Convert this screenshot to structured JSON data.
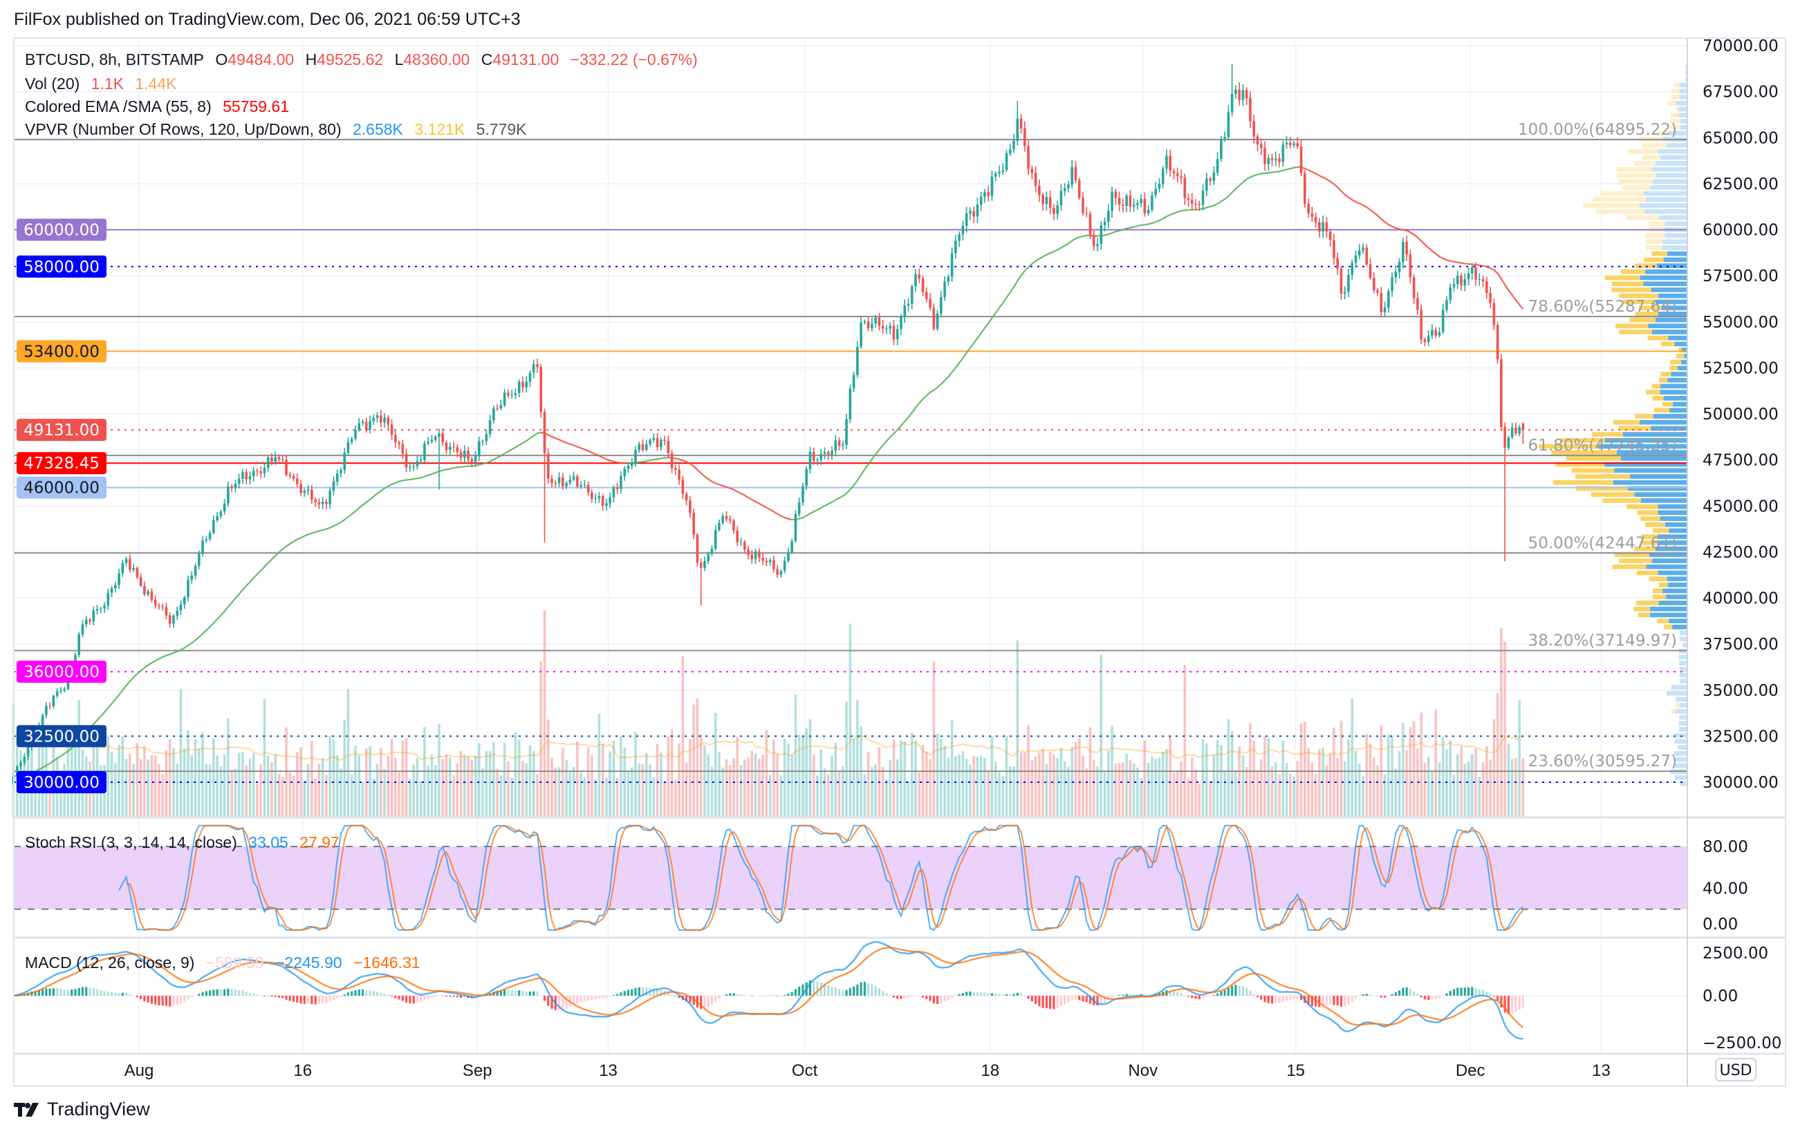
{
  "header": {
    "published": "FilFox published on TradingView.com, Dec 06, 2021 06:59 UTC+3"
  },
  "legend": {
    "symbol": "BTCUSD, 8h, BITSTAMP",
    "o_label": "O",
    "o": "49484.00",
    "h_label": "H",
    "h": "49525.62",
    "l_label": "L",
    "l": "48360.00",
    "c_label": "C",
    "c": "49131.00",
    "change": "−332.22 (−0.67%)",
    "vol_name": "Vol (20)",
    "vol": "1.1K",
    "vol_ma": "1.44K",
    "ema_name": "Colored EMA /SMA (55, 8)",
    "ema": "55759.61",
    "vpvr_name": "VPVR (Number Of Rows, 120, Up/Down, 80)",
    "vpvr_up": "2.658K",
    "vpvr_down": "3.121K",
    "vpvr_total": "5.779K"
  },
  "stoch": {
    "name": "Stoch RSI (3, 3, 14, 14, close)",
    "k": "33.05",
    "d": "27.97",
    "ticks": [
      "80.00",
      "40.00",
      "0.00"
    ]
  },
  "macd": {
    "name": "MACD (12, 26, close, 9)",
    "hist": "−599.59",
    "macd": "−2245.90",
    "signal": "−1646.31",
    "ticks": [
      "2500.00",
      "0.00",
      "−2500.00"
    ]
  },
  "price_axis": {
    "currency": "USD",
    "ticks": [
      "70000.00",
      "67500.00",
      "65000.00",
      "62500.00",
      "60000.00",
      "57500.00",
      "55000.00",
      "52500.00",
      "50000.00",
      "47500.00",
      "45000.00",
      "42500.00",
      "40000.00",
      "37500.00",
      "35000.00",
      "32500.00",
      "30000.00"
    ]
  },
  "levels": [
    {
      "price": 60000,
      "label": "60000.00",
      "color": "#9575cd",
      "text_color": "#ffffff",
      "style": "solid"
    },
    {
      "price": 58000,
      "label": "58000.00",
      "color": "#0000ff",
      "text_color": "#ffffff",
      "style": "dotted"
    },
    {
      "price": 53400,
      "label": "53400.00",
      "color": "#ffa726",
      "text_color": "#131722",
      "style": "solid"
    },
    {
      "price": 49131,
      "label": "49131.00",
      "color": "#ef5350",
      "text_color": "#ffffff",
      "style": "dotted"
    },
    {
      "price": 47328.45,
      "label": "47328.45",
      "color": "#ff0000",
      "text_color": "#ffffff",
      "style": "solid"
    },
    {
      "price": 46000,
      "label": "46000.00",
      "color": "#a4c2f4",
      "text_color": "#131722",
      "style": "solid"
    },
    {
      "price": 36000,
      "label": "36000.00",
      "color": "#ff00ff",
      "text_color": "#ffffff",
      "style": "dotted"
    },
    {
      "price": 32500,
      "label": "32500.00",
      "color": "#0d47a1",
      "text_color": "#ffffff",
      "style": "dotted"
    },
    {
      "price": 30000,
      "label": "30000.00",
      "color": "#0000ff",
      "text_color": "#ffffff",
      "style": "dotted"
    }
  ],
  "fib": [
    {
      "label": "100.00%(64895.22)",
      "price": 64895.22
    },
    {
      "label": "78.60%(55287.64)",
      "price": 55287.64
    },
    {
      "label": "61.80%(47745.25)",
      "price": 47745.25
    },
    {
      "label": "50.00%(42447.61)",
      "price": 42447.61
    },
    {
      "label": "38.20%(37149.97)",
      "price": 37149.97
    },
    {
      "label": "23.60%(30595.27)",
      "price": 30595.27
    }
  ],
  "time_axis": [
    {
      "label": "Aug",
      "day": 0
    },
    {
      "label": "16",
      "day": 15
    },
    {
      "label": "Sep",
      "day": 31
    },
    {
      "label": "13",
      "day": 43
    },
    {
      "label": "Oct",
      "day": 61
    },
    {
      "label": "18",
      "day": 78
    },
    {
      "label": "Nov",
      "day": 92
    },
    {
      "label": "15",
      "day": 106
    },
    {
      "label": "Dec",
      "day": 122
    },
    {
      "label": "13",
      "day": 134
    }
  ],
  "brand": "TradingView",
  "colors": {
    "up": "#26a69a",
    "down": "#ef5350",
    "ema_up": "#4caf50",
    "ema_down": "#f44336",
    "macd": "#2196f3",
    "signal": "#ff6d00",
    "stoch_k": "#2196f3",
    "stoch_d": "#ff6d00",
    "vp_up": "#5dade8",
    "vp_down": "#fbd365",
    "vp_up_light": "#c8e2f7",
    "vp_down_light": "#fdefc9",
    "stoch_band": "#ead2fb"
  },
  "chart_data": {
    "type": "candlestick",
    "title": "BTCUSD, 8h, BITSTAMP",
    "x_unit": "days since 2021-08-01",
    "ylim": [
      29000,
      70000
    ],
    "bar_interval_days": 0.3333,
    "close_path": [
      [
        -11.5,
        30200
      ],
      [
        -10.5,
        31500
      ],
      [
        -8.5,
        34000
      ],
      [
        -6.5,
        35500
      ],
      [
        -5.4,
        38300
      ],
      [
        -3.5,
        39500
      ],
      [
        -1.2,
        42000
      ],
      [
        0.5,
        40500
      ],
      [
        3,
        38600
      ],
      [
        5.7,
        42600
      ],
      [
        8.3,
        46000
      ],
      [
        12.5,
        47600
      ],
      [
        16.7,
        44800
      ],
      [
        19.9,
        49200
      ],
      [
        22,
        50000
      ],
      [
        25,
        47000
      ],
      [
        27.2,
        48900
      ],
      [
        30.4,
        47300
      ],
      [
        32.5,
        50100
      ],
      [
        36.5,
        52600
      ],
      [
        37.3,
        46500
      ],
      [
        39.8,
        46300
      ],
      [
        43,
        45100
      ],
      [
        45.6,
        48200
      ],
      [
        48.2,
        48500
      ],
      [
        50.3,
        45000
      ],
      [
        51.4,
        41400
      ],
      [
        53.5,
        44500
      ],
      [
        55.6,
        42600
      ],
      [
        58.8,
        41400
      ],
      [
        59.8,
        43200
      ],
      [
        61.4,
        47600
      ],
      [
        64.5,
        48300
      ],
      [
        66.1,
        55000
      ],
      [
        69.3,
        54500
      ],
      [
        71.4,
        57500
      ],
      [
        72.9,
        55000
      ],
      [
        75.6,
        60700
      ],
      [
        77.7,
        61900
      ],
      [
        79.8,
        64400
      ],
      [
        80.5,
        66000
      ],
      [
        81.9,
        62500
      ],
      [
        84,
        61000
      ],
      [
        85.6,
        63200
      ],
      [
        87.7,
        58800
      ],
      [
        89.2,
        61900
      ],
      [
        92.4,
        61000
      ],
      [
        94,
        63800
      ],
      [
        96.6,
        61300
      ],
      [
        98.7,
        63200
      ],
      [
        100.3,
        67800
      ],
      [
        101.3,
        67300
      ],
      [
        102.4,
        64400
      ],
      [
        103.9,
        63800
      ],
      [
        106,
        64800
      ],
      [
        107.1,
        61000
      ],
      [
        109.2,
        59400
      ],
      [
        110.2,
        56600
      ],
      [
        111.8,
        59100
      ],
      [
        113.9,
        55700
      ],
      [
        116,
        59100
      ],
      [
        117.6,
        54100
      ],
      [
        119.2,
        54400
      ],
      [
        120.2,
        57200
      ],
      [
        122.3,
        57600
      ],
      [
        123.9,
        56300
      ],
      [
        124.4,
        53800
      ],
      [
        125,
        48000
      ],
      [
        126,
        49100
      ],
      [
        126.83,
        49131
      ]
    ],
    "wick_lows": [
      {
        "day": 125.1,
        "low": 42000
      },
      {
        "day": 37.3,
        "low": 43000
      },
      {
        "day": 51.4,
        "low": 39600
      },
      {
        "day": 27.4,
        "low": 45900
      }
    ],
    "wick_highs": [
      {
        "day": 100.3,
        "high": 69000
      },
      {
        "day": 80.5,
        "high": 67000
      }
    ],
    "last_bar": {
      "open": 49484.0,
      "high": 49525.62,
      "low": 48360.0,
      "close": 49131.0
    },
    "indicators": [
      "Vol (20)",
      "Colored EMA /SMA (55, 8)",
      "VPVR (Number Of Rows, 120, Up/Down, 80)",
      "Stoch RSI (3, 3, 14, 14, close)",
      "MACD (12, 26, close, 9)"
    ]
  }
}
